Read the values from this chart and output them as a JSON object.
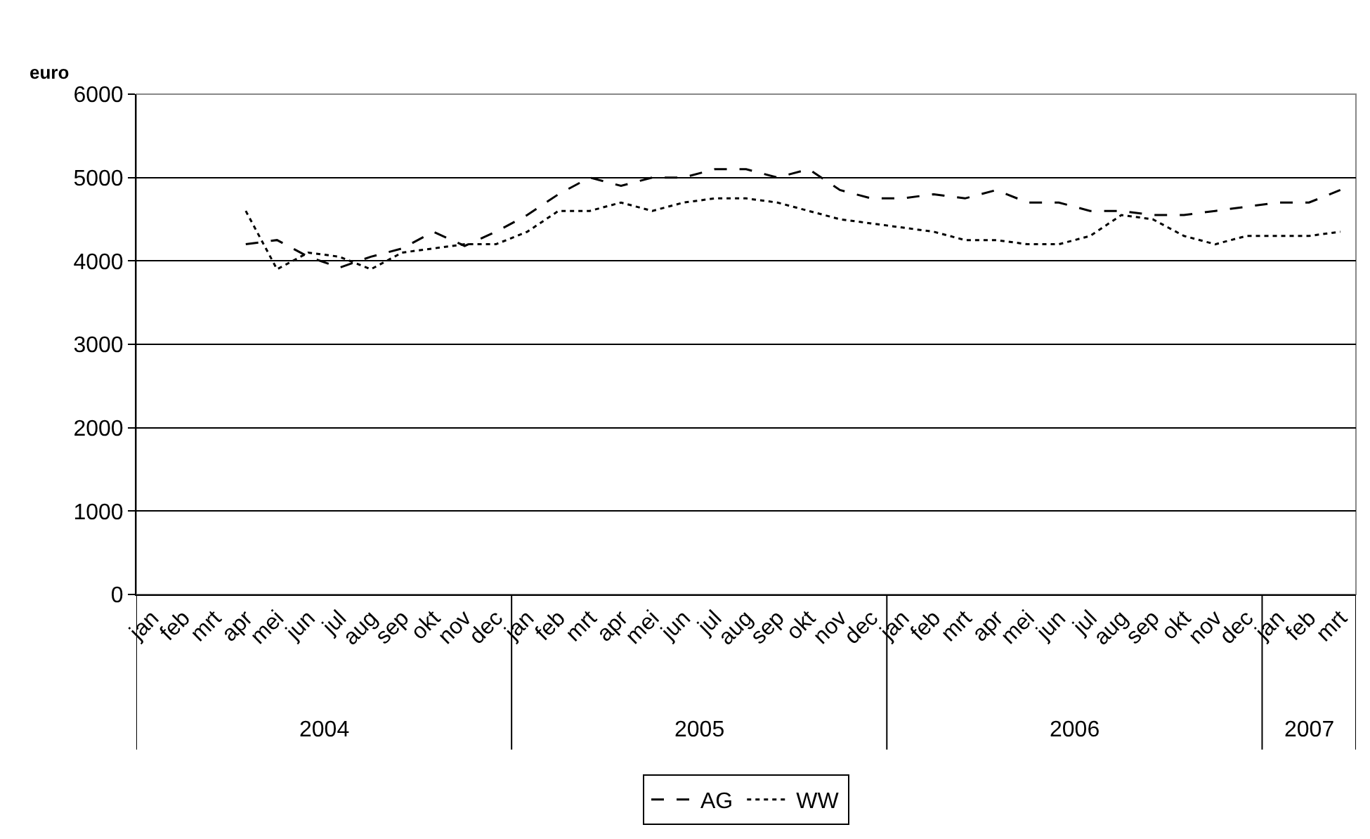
{
  "chart_data": {
    "type": "line",
    "ylabel": "euro",
    "categories": [
      "jan",
      "feb",
      "mrt",
      "apr",
      "mei",
      "jun",
      "jul",
      "aug",
      "sep",
      "okt",
      "nov",
      "dec",
      "jan",
      "feb",
      "mrt",
      "apr",
      "mei",
      "jun",
      "jul",
      "aug",
      "sep",
      "okt",
      "nov",
      "dec",
      "jan",
      "feb",
      "mrt",
      "apr",
      "mei",
      "jun",
      "jul",
      "aug",
      "sep",
      "okt",
      "nov",
      "dec",
      "jan",
      "feb",
      "mrt"
    ],
    "annotations": [
      "2004",
      "2005",
      "2006",
      "2007"
    ],
    "series": [
      {
        "name": "AG",
        "color": "#000000",
        "line_style": "dashed",
        "values": [
          null,
          null,
          null,
          4200,
          4250,
          4050,
          3920,
          4050,
          4150,
          4350,
          4180,
          4350,
          4550,
          4800,
          5000,
          4900,
          5000,
          5000,
          5100,
          5100,
          5000,
          5100,
          4850,
          4750,
          4750,
          4800,
          4750,
          4850,
          4700,
          4700,
          4600,
          4600,
          4550,
          4550,
          4600,
          4650,
          4700,
          4700,
          4850
        ]
      },
      {
        "name": "WW",
        "color": "#000000",
        "line_style": "dotted",
        "values": [
          null,
          null,
          null,
          4600,
          3900,
          4100,
          4050,
          3900,
          4100,
          4150,
          4200,
          4200,
          4350,
          4600,
          4600,
          4700,
          4600,
          4700,
          4750,
          4750,
          4700,
          4600,
          4500,
          4450,
          4400,
          4350,
          4250,
          4250,
          4200,
          4200,
          4300,
          4550,
          4500,
          4300,
          4200,
          4300,
          4300,
          4300,
          4350
        ]
      }
    ],
    "ylim": [
      0,
      6000
    ],
    "yticks": [
      0,
      1000,
      2000,
      3000,
      4000,
      5000,
      6000
    ],
    "grid": "y",
    "legend": "bottom",
    "marker": "none"
  }
}
